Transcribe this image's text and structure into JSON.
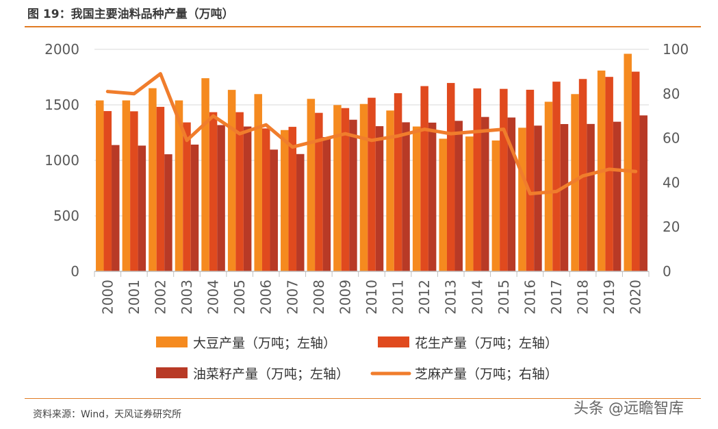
{
  "header": {
    "title": "图 19：我国主要油料品种产量（万吨）"
  },
  "footer": {
    "source": "资料来源：Wind，天风证券研究所",
    "watermark": "头条 @远瞻智库"
  },
  "colors": {
    "soybean": "#f58a1f",
    "peanut": "#e04a1e",
    "rapeseed": "#b83a26",
    "sesame": "#f07d2c",
    "axis": "#bfbfbf",
    "grid": "#d9d9d9",
    "rule": "#e07a22"
  },
  "chart_data": {
    "type": "bar",
    "title": "",
    "categories": [
      "2000",
      "2001",
      "2002",
      "2003",
      "2004",
      "2005",
      "2006",
      "2007",
      "2008",
      "2009",
      "2010",
      "2011",
      "2012",
      "2013",
      "2014",
      "2015",
      "2016",
      "2017",
      "2018",
      "2019",
      "2020"
    ],
    "y_left": {
      "min": 0,
      "max": 2000,
      "ticks": [
        0,
        500,
        1000,
        1500,
        2000
      ]
    },
    "y_right": {
      "min": 0,
      "max": 100,
      "ticks": [
        0,
        20,
        40,
        60,
        80,
        100
      ]
    },
    "grid": "horizontal",
    "legend_position": "bottom",
    "series": [
      {
        "name": "大豆产量（万吨；左轴）",
        "kind": "bar",
        "axis": "left",
        "color": "#f58a1f",
        "values": [
          1540,
          1540,
          1650,
          1540,
          1740,
          1635,
          1597,
          1273,
          1554,
          1498,
          1508,
          1449,
          1305,
          1195,
          1215,
          1179,
          1294,
          1528,
          1597,
          1809,
          1960
        ]
      },
      {
        "name": "花生产量（万吨；左轴）",
        "kind": "bar",
        "axis": "left",
        "color": "#e04a1e",
        "values": [
          1444,
          1442,
          1482,
          1342,
          1434,
          1434,
          1288,
          1302,
          1428,
          1471,
          1564,
          1605,
          1669,
          1697,
          1648,
          1644,
          1636,
          1709,
          1733,
          1752,
          1799
        ]
      },
      {
        "name": "油菜籽产量（万吨；左轴）",
        "kind": "bar",
        "axis": "left",
        "color": "#b83a26",
        "values": [
          1138,
          1133,
          1055,
          1142,
          1318,
          1305,
          1097,
          1057,
          1210,
          1366,
          1308,
          1343,
          1340,
          1356,
          1391,
          1386,
          1313,
          1327,
          1328,
          1348,
          1405
        ]
      },
      {
        "name": "芝麻产量（万吨；右轴）",
        "kind": "line",
        "axis": "right",
        "color": "#f07d2c",
        "values": [
          81,
          80,
          89,
          59,
          70,
          62,
          66,
          56,
          59,
          62,
          59,
          61,
          64,
          62,
          63,
          64,
          35,
          36,
          43,
          46,
          45
        ]
      }
    ]
  }
}
